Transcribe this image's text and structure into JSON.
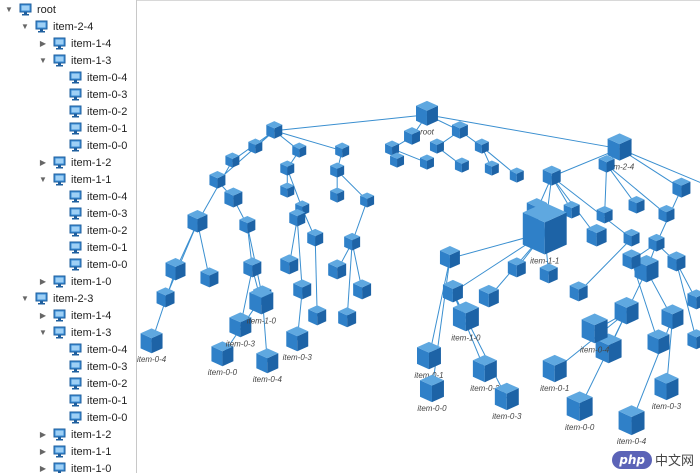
{
  "tree": {
    "root": "root",
    "nodes": [
      {
        "label": "item-2-4",
        "level": 1,
        "toggle": "expanded"
      },
      {
        "label": "item-1-4",
        "level": 2,
        "toggle": "collapsed"
      },
      {
        "label": "item-1-3",
        "level": 2,
        "toggle": "expanded"
      },
      {
        "label": "item-0-4",
        "level": 3,
        "toggle": "none"
      },
      {
        "label": "item-0-3",
        "level": 3,
        "toggle": "none"
      },
      {
        "label": "item-0-2",
        "level": 3,
        "toggle": "none"
      },
      {
        "label": "item-0-1",
        "level": 3,
        "toggle": "none"
      },
      {
        "label": "item-0-0",
        "level": 3,
        "toggle": "none"
      },
      {
        "label": "item-1-2",
        "level": 2,
        "toggle": "collapsed"
      },
      {
        "label": "item-1-1",
        "level": 2,
        "toggle": "expanded"
      },
      {
        "label": "item-0-4",
        "level": 3,
        "toggle": "none"
      },
      {
        "label": "item-0-3",
        "level": 3,
        "toggle": "none"
      },
      {
        "label": "item-0-2",
        "level": 3,
        "toggle": "none"
      },
      {
        "label": "item-0-1",
        "level": 3,
        "toggle": "none"
      },
      {
        "label": "item-0-0",
        "level": 3,
        "toggle": "none"
      },
      {
        "label": "item-1-0",
        "level": 2,
        "toggle": "collapsed"
      },
      {
        "label": "item-2-3",
        "level": 1,
        "toggle": "expanded"
      },
      {
        "label": "item-1-4",
        "level": 2,
        "toggle": "collapsed"
      },
      {
        "label": "item-1-3",
        "level": 2,
        "toggle": "expanded"
      },
      {
        "label": "item-0-4",
        "level": 3,
        "toggle": "none"
      },
      {
        "label": "item-0-3",
        "level": 3,
        "toggle": "none"
      },
      {
        "label": "item-0-2",
        "level": 3,
        "toggle": "none"
      },
      {
        "label": "item-0-1",
        "level": 3,
        "toggle": "none"
      },
      {
        "label": "item-0-0",
        "level": 3,
        "toggle": "none"
      },
      {
        "label": "item-1-2",
        "level": 2,
        "toggle": "collapsed"
      },
      {
        "label": "item-1-1",
        "level": 2,
        "toggle": "collapsed"
      },
      {
        "label": "item-1-0",
        "level": 2,
        "toggle": "collapsed"
      }
    ]
  },
  "graph": {
    "root_label": "root",
    "labels": {
      "l11": "item-1-1",
      "l10": "item-1-0",
      "l24": "item-2-4",
      "l04": "item-0-4",
      "l03": "item-0-3",
      "l02": "item-0-2",
      "l01": "item-0-1",
      "l00": "item-0-0"
    }
  },
  "watermark": {
    "brand": "php",
    "text": "中文网"
  },
  "colors": {
    "cube_top": "#5fa8e0",
    "cube_left": "#2f80c8",
    "cube_right": "#1d63a6",
    "edge": "#3a8fd0",
    "label": "#444444"
  }
}
